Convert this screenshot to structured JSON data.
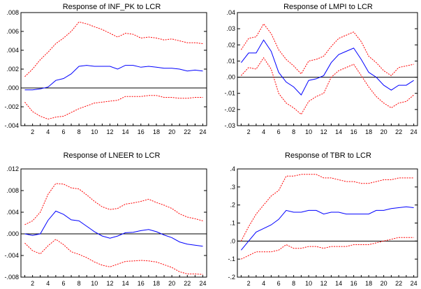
{
  "chart_data": [
    {
      "type": "line",
      "title": "Response of INF_PK to LCR",
      "x": [
        1,
        2,
        3,
        4,
        5,
        6,
        7,
        8,
        9,
        10,
        11,
        12,
        13,
        14,
        15,
        16,
        17,
        18,
        19,
        20,
        21,
        22,
        23,
        24
      ],
      "xticks": [
        2,
        4,
        6,
        8,
        10,
        12,
        14,
        16,
        18,
        20,
        22,
        24
      ],
      "ylim": [
        -0.004,
        0.008
      ],
      "yticks": [
        -0.004,
        -0.002,
        0.0,
        0.002,
        0.004,
        0.006,
        0.008
      ],
      "ytick_labels": [
        "-.004",
        "-.002",
        ".000",
        ".002",
        ".004",
        ".006",
        ".008"
      ],
      "series": [
        {
          "role": "response",
          "color": "#0000ff",
          "style": "solid",
          "values": [
            -0.0002,
            -0.0002,
            -0.0001,
            0.0001,
            0.0008,
            0.001,
            0.0015,
            0.0023,
            0.0024,
            0.0023,
            0.0023,
            0.0023,
            0.002,
            0.0024,
            0.0024,
            0.0022,
            0.0023,
            0.0022,
            0.0021,
            0.0021,
            0.002,
            0.0018,
            0.0019,
            0.0018
          ]
        },
        {
          "role": "upper band",
          "color": "#ff0000",
          "style": "dotted",
          "values": [
            0.0012,
            0.002,
            0.003,
            0.0038,
            0.0047,
            0.0053,
            0.006,
            0.007,
            0.0068,
            0.0065,
            0.0062,
            0.0058,
            0.0054,
            0.0058,
            0.0057,
            0.0053,
            0.0054,
            0.0053,
            0.0051,
            0.0052,
            0.005,
            0.0048,
            0.0048,
            0.0047
          ]
        },
        {
          "role": "lower band",
          "color": "#ff0000",
          "style": "dotted",
          "values": [
            -0.0015,
            -0.0025,
            -0.003,
            -0.0033,
            -0.0031,
            -0.003,
            -0.0026,
            -0.0022,
            -0.0019,
            -0.0016,
            -0.0015,
            -0.0014,
            -0.0013,
            -0.0009,
            -0.0009,
            -0.0009,
            -0.0008,
            -0.0008,
            -0.001,
            -0.001,
            -0.0011,
            -0.0011,
            -0.001,
            -0.001
          ]
        }
      ]
    },
    {
      "type": "line",
      "title": "Response of LMPI to LCR",
      "x": [
        1,
        2,
        3,
        4,
        5,
        6,
        7,
        8,
        9,
        10,
        11,
        12,
        13,
        14,
        15,
        16,
        17,
        18,
        19,
        20,
        21,
        22,
        23,
        24
      ],
      "xticks": [
        2,
        4,
        6,
        8,
        10,
        12,
        14,
        16,
        18,
        20,
        22,
        24
      ],
      "ylim": [
        -0.03,
        0.04
      ],
      "yticks": [
        -0.03,
        -0.02,
        -0.01,
        0.0,
        0.01,
        0.02,
        0.03,
        0.04
      ],
      "ytick_labels": [
        "-.03",
        "-.02",
        "-.01",
        ".00",
        ".01",
        ".02",
        ".03",
        ".04"
      ],
      "series": [
        {
          "role": "response",
          "color": "#0000ff",
          "style": "solid",
          "values": [
            0.009,
            0.015,
            0.015,
            0.023,
            0.016,
            0.003,
            -0.003,
            -0.006,
            -0.011,
            -0.002,
            -0.001,
            0.001,
            0.009,
            0.014,
            0.016,
            0.018,
            0.011,
            0.003,
            0.0,
            -0.005,
            -0.008,
            -0.005,
            -0.005,
            -0.002
          ]
        },
        {
          "role": "upper band",
          "color": "#ff0000",
          "style": "dotted",
          "values": [
            0.017,
            0.024,
            0.025,
            0.033,
            0.027,
            0.017,
            0.011,
            0.007,
            0.002,
            0.01,
            0.011,
            0.013,
            0.019,
            0.024,
            0.026,
            0.028,
            0.022,
            0.013,
            0.009,
            0.004,
            0.001,
            0.006,
            0.007,
            0.008
          ]
        },
        {
          "role": "lower band",
          "color": "#ff0000",
          "style": "dotted",
          "values": [
            0.001,
            0.006,
            0.005,
            0.012,
            0.005,
            -0.01,
            -0.016,
            -0.019,
            -0.023,
            -0.015,
            -0.012,
            -0.01,
            0.0,
            0.004,
            0.006,
            0.008,
            0.001,
            -0.006,
            -0.012,
            -0.016,
            -0.019,
            -0.016,
            -0.015,
            -0.011
          ]
        }
      ]
    },
    {
      "type": "line",
      "title": "Response of LNEER to LCR",
      "x": [
        1,
        2,
        3,
        4,
        5,
        6,
        7,
        8,
        9,
        10,
        11,
        12,
        13,
        14,
        15,
        16,
        17,
        18,
        19,
        20,
        21,
        22,
        23,
        24
      ],
      "xticks": [
        2,
        4,
        6,
        8,
        10,
        12,
        14,
        16,
        18,
        20,
        22,
        24
      ],
      "ylim": [
        -0.008,
        0.012
      ],
      "yticks": [
        -0.008,
        -0.004,
        0.0,
        0.004,
        0.008,
        0.012
      ],
      "ytick_labels": [
        "-.008",
        "-.004",
        ".000",
        ".004",
        ".008",
        ".012"
      ],
      "series": [
        {
          "role": "response",
          "color": "#0000ff",
          "style": "solid",
          "values": [
            0.0,
            -0.0003,
            0.0,
            0.0025,
            0.0042,
            0.0036,
            0.0026,
            0.0024,
            0.0014,
            0.0004,
            -0.0004,
            -0.0008,
            -0.0004,
            0.0002,
            0.0003,
            0.0006,
            0.0008,
            0.0004,
            -0.0002,
            -0.0007,
            -0.0015,
            -0.0019,
            -0.0021,
            -0.0023
          ]
        },
        {
          "role": "upper band",
          "color": "#ff0000",
          "style": "dotted",
          "values": [
            0.0017,
            0.0024,
            0.004,
            0.0073,
            0.0093,
            0.0092,
            0.0085,
            0.0083,
            0.0072,
            0.006,
            0.005,
            0.0045,
            0.0047,
            0.0055,
            0.0057,
            0.006,
            0.0064,
            0.0058,
            0.0053,
            0.0047,
            0.0037,
            0.0031,
            0.0028,
            0.0024
          ]
        },
        {
          "role": "lower band",
          "color": "#ff0000",
          "style": "dotted",
          "values": [
            -0.0017,
            -0.0031,
            -0.0037,
            -0.0022,
            -0.001,
            -0.002,
            -0.0033,
            -0.0038,
            -0.0044,
            -0.0052,
            -0.0058,
            -0.0061,
            -0.0056,
            -0.0051,
            -0.005,
            -0.0049,
            -0.005,
            -0.0052,
            -0.0057,
            -0.0062,
            -0.007,
            -0.0074,
            -0.0074,
            -0.0075
          ]
        }
      ]
    },
    {
      "type": "line",
      "title": "Response of TBR to LCR",
      "x": [
        1,
        2,
        3,
        4,
        5,
        6,
        7,
        8,
        9,
        10,
        11,
        12,
        13,
        14,
        15,
        16,
        17,
        18,
        19,
        20,
        21,
        22,
        23,
        24
      ],
      "xticks": [
        2,
        4,
        6,
        8,
        10,
        12,
        14,
        16,
        18,
        20,
        22,
        24
      ],
      "ylim": [
        -0.2,
        0.4
      ],
      "yticks": [
        -0.2,
        -0.1,
        0.0,
        0.1,
        0.2,
        0.3,
        0.4
      ],
      "ytick_labels": [
        "-.2",
        "-.1",
        ".0",
        ".1",
        ".2",
        ".3",
        ".4"
      ],
      "series": [
        {
          "role": "response",
          "color": "#0000ff",
          "style": "solid",
          "values": [
            -0.05,
            0.0,
            0.05,
            0.07,
            0.09,
            0.12,
            0.17,
            0.16,
            0.16,
            0.17,
            0.17,
            0.15,
            0.16,
            0.16,
            0.15,
            0.15,
            0.15,
            0.15,
            0.17,
            0.17,
            0.18,
            0.185,
            0.19,
            0.185
          ]
        },
        {
          "role": "upper band",
          "color": "#ff0000",
          "style": "dotted",
          "values": [
            0.0,
            0.08,
            0.15,
            0.2,
            0.25,
            0.28,
            0.36,
            0.36,
            0.37,
            0.37,
            0.37,
            0.35,
            0.35,
            0.34,
            0.33,
            0.33,
            0.32,
            0.32,
            0.33,
            0.34,
            0.34,
            0.35,
            0.35,
            0.35
          ]
        },
        {
          "role": "lower band",
          "color": "#ff0000",
          "style": "dotted",
          "values": [
            -0.1,
            -0.08,
            -0.06,
            -0.06,
            -0.06,
            -0.05,
            -0.02,
            -0.04,
            -0.04,
            -0.03,
            -0.03,
            -0.04,
            -0.03,
            -0.03,
            -0.03,
            -0.02,
            -0.02,
            -0.02,
            -0.01,
            0.0,
            0.01,
            0.02,
            0.02,
            0.02
          ]
        }
      ]
    }
  ]
}
